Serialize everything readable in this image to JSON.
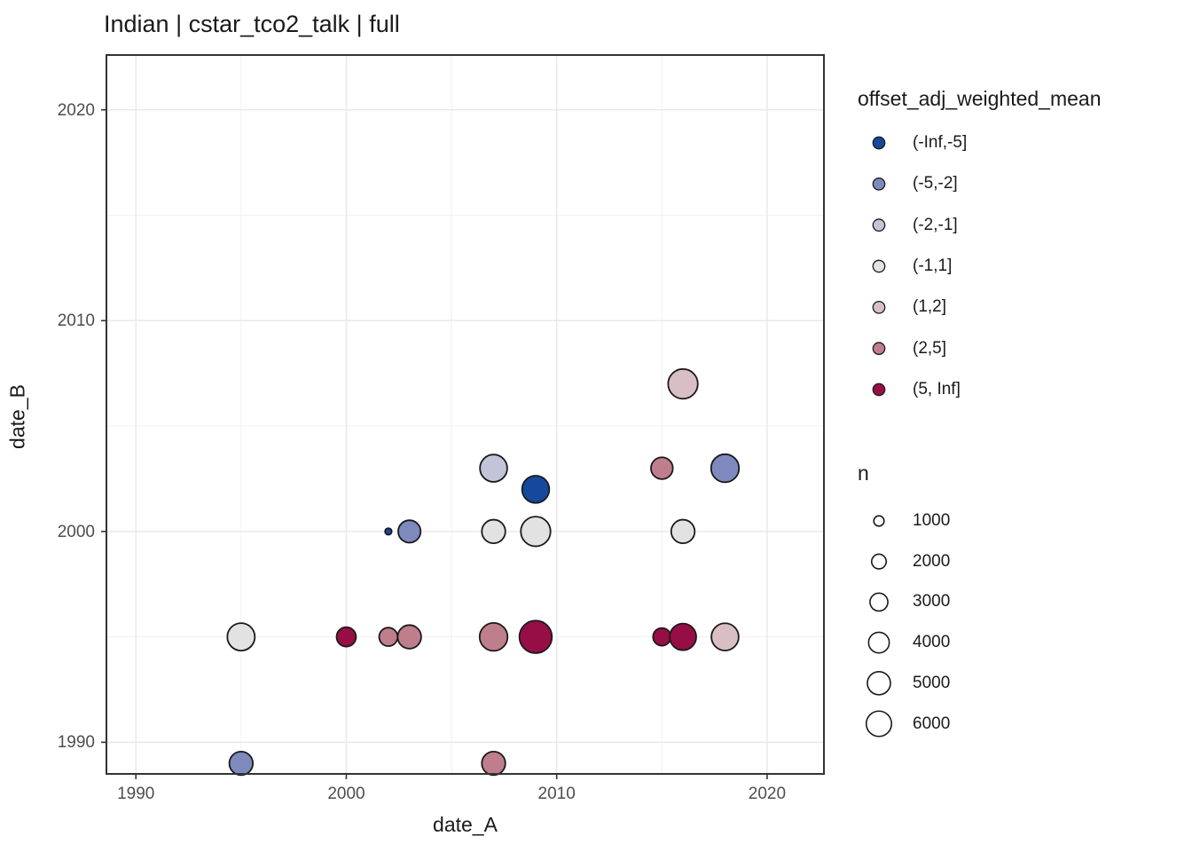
{
  "title": "Indian | cstar_tco2_talk | full",
  "x_axis": {
    "label": "date_A",
    "tick_labels": [
      "1990",
      "2000",
      "2010",
      "2020"
    ],
    "tick_values": [
      1990,
      2000,
      2010,
      2020
    ],
    "minor_values": [
      1995,
      2005,
      2015
    ],
    "domain": [
      1988.6,
      2022.7
    ]
  },
  "y_axis": {
    "label": "date_B",
    "tick_labels": [
      "1990",
      "2000",
      "2010",
      "2020"
    ],
    "tick_values": [
      1990,
      2000,
      2010,
      2020
    ],
    "minor_values": [
      1995,
      2005,
      2015
    ],
    "domain": [
      1988.5,
      2022.6
    ]
  },
  "legend_color": {
    "title": "offset_adj_weighted_mean",
    "items": [
      {
        "label": "(-Inf,-5]",
        "color": "#15499D"
      },
      {
        "label": "(-5,-2]",
        "color": "#7E89BE"
      },
      {
        "label": "(-2,-1]",
        "color": "#C2C5D8"
      },
      {
        "label": "(-1,1]",
        "color": "#E2E2E2"
      },
      {
        "label": "(1,2]",
        "color": "#D9BEC3"
      },
      {
        "label": "(2,5]",
        "color": "#BF7E8C"
      },
      {
        "label": "(5, Inf]",
        "color": "#970E47"
      }
    ]
  },
  "legend_size": {
    "title": "n",
    "items": [
      {
        "label": "1000",
        "n": 1000
      },
      {
        "label": "2000",
        "n": 2000
      },
      {
        "label": "3000",
        "n": 3000
      },
      {
        "label": "4000",
        "n": 4000
      },
      {
        "label": "5000",
        "n": 5000
      },
      {
        "label": "6000",
        "n": 6000
      }
    ]
  },
  "style": {
    "point_stroke": "#1a1a1a",
    "panel_border": "#333333",
    "grid_major": "#e9e9e9",
    "grid_minor": "#f2f2f2",
    "tick_color": "#333333"
  },
  "chart_data": {
    "type": "scatter",
    "xlabel": "date_A",
    "ylabel": "date_B",
    "xlim": [
      1988.6,
      2022.7
    ],
    "ylim": [
      1988.5,
      2022.6
    ],
    "grid": true,
    "legend_position": "right",
    "size_scale_k": 0.2,
    "points": [
      {
        "date_A": 1995,
        "date_B": 1995,
        "bin": "(-1,1]",
        "n": 6000
      },
      {
        "date_A": 1995,
        "date_B": 1989,
        "bin": "(-5,-2]",
        "n": 4400
      },
      {
        "date_A": 2000,
        "date_B": 1995,
        "bin": "(5, Inf]",
        "n": 3000
      },
      {
        "date_A": 2002,
        "date_B": 2000,
        "bin": "(-Inf,-5]",
        "n": 350
      },
      {
        "date_A": 2002,
        "date_B": 1995,
        "bin": "(2,5]",
        "n": 2700
      },
      {
        "date_A": 2003,
        "date_B": 2000,
        "bin": "(-5,-2]",
        "n": 4000
      },
      {
        "date_A": 2003,
        "date_B": 1995,
        "bin": "(2,5]",
        "n": 4400
      },
      {
        "date_A": 2007,
        "date_B": 2003,
        "bin": "(-2,-1]",
        "n": 5900
      },
      {
        "date_A": 2007,
        "date_B": 2000,
        "bin": "(-1,1]",
        "n": 4400
      },
      {
        "date_A": 2007,
        "date_B": 1995,
        "bin": "(2,5]",
        "n": 6200
      },
      {
        "date_A": 2007,
        "date_B": 1989,
        "bin": "(2,5]",
        "n": 4400
      },
      {
        "date_A": 2009,
        "date_B": 2002,
        "bin": "(-Inf,-5]",
        "n": 5900
      },
      {
        "date_A": 2009,
        "date_B": 2000,
        "bin": "(-1,1]",
        "n": 7000
      },
      {
        "date_A": 2009,
        "date_B": 1995,
        "bin": "(5, Inf]",
        "n": 8400
      },
      {
        "date_A": 2015,
        "date_B": 2003,
        "bin": "(2,5]",
        "n": 3800
      },
      {
        "date_A": 2015,
        "date_B": 1995,
        "bin": "(5, Inf]",
        "n": 2500
      },
      {
        "date_A": 2016,
        "date_B": 2007,
        "bin": "(1,2]",
        "n": 7000
      },
      {
        "date_A": 2016,
        "date_B": 2000,
        "bin": "(-1,1]",
        "n": 4400
      },
      {
        "date_A": 2016,
        "date_B": 1995,
        "bin": "(5, Inf]",
        "n": 5600
      },
      {
        "date_A": 2018,
        "date_B": 2003,
        "bin": "(-5,-2]",
        "n": 6200
      },
      {
        "date_A": 2018,
        "date_B": 1995,
        "bin": "(1,2]",
        "n": 5900
      }
    ]
  }
}
